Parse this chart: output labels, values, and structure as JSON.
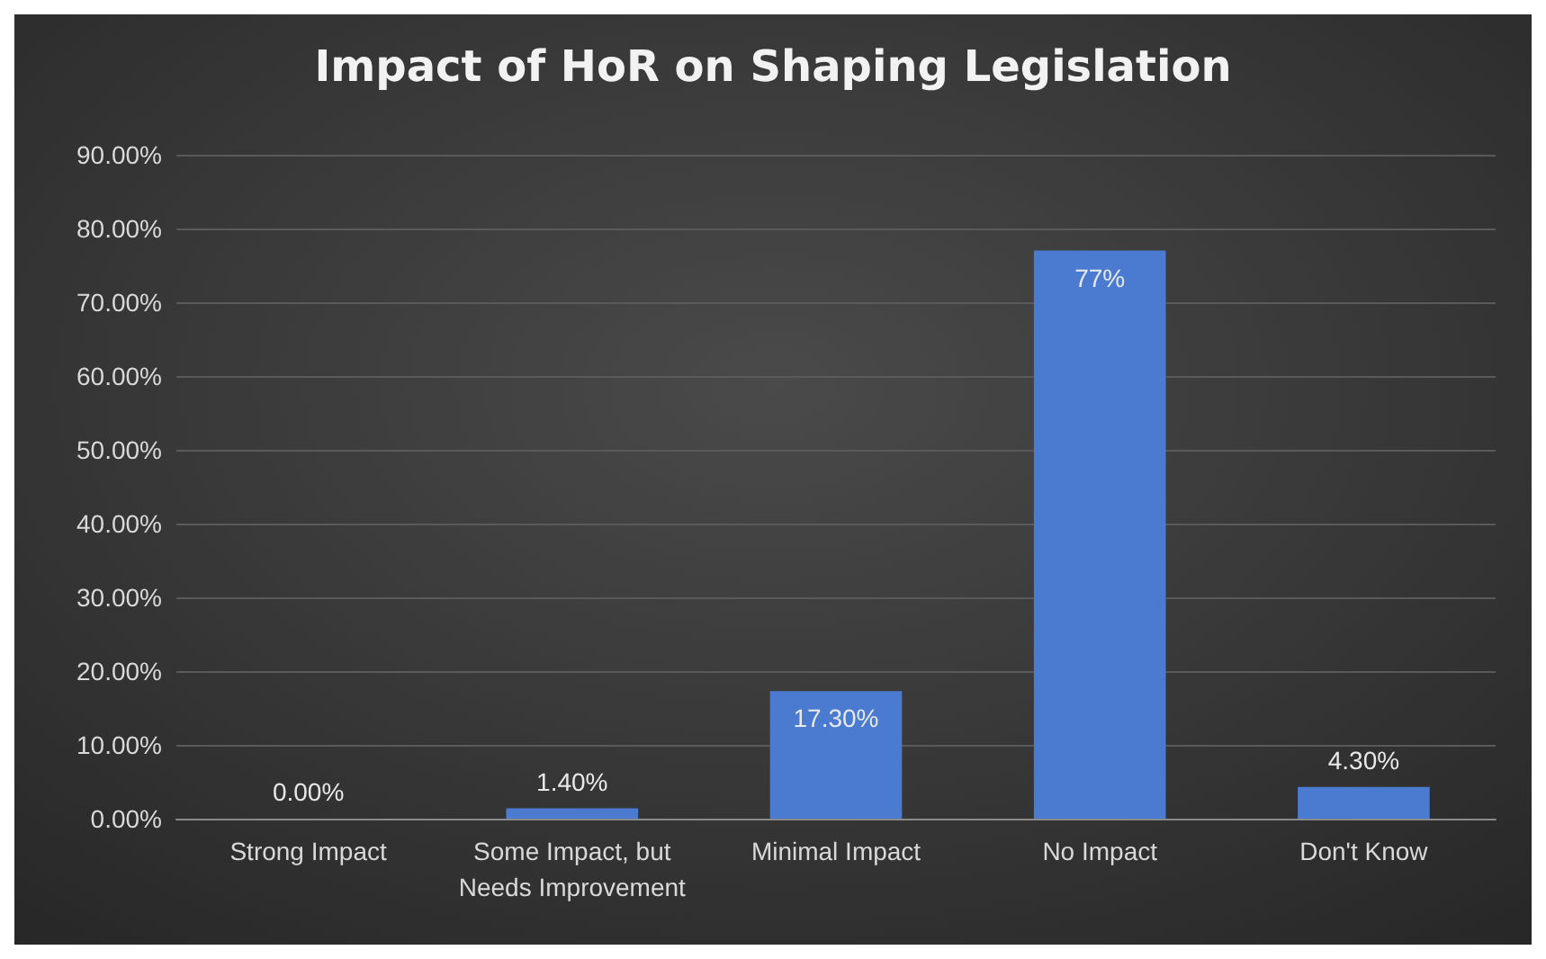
{
  "chart_data": {
    "type": "bar",
    "title": "Impact of HoR on Shaping Legislation",
    "categories": [
      "Strong Impact",
      "Some Impact, but\nNeeds Improvement",
      "Minimal Impact",
      "No Impact",
      "Don't Know"
    ],
    "values": [
      0,
      1.4,
      17.3,
      77,
      4.3
    ],
    "value_labels": [
      "0.00%",
      "1.40%",
      "17.30%",
      "77%",
      "4.30%"
    ],
    "color": "#4a7bd0",
    "ylim": [
      0,
      90
    ],
    "yticks": [
      {
        "value": 0,
        "label": "0.00%"
      },
      {
        "value": 10,
        "label": "10.00%"
      },
      {
        "value": 20,
        "label": "20.00%"
      },
      {
        "value": 30,
        "label": "30.00%"
      },
      {
        "value": 40,
        "label": "40.00%"
      },
      {
        "value": 50,
        "label": "50.00%"
      },
      {
        "value": 60,
        "label": "60.00%"
      },
      {
        "value": 70,
        "label": "70.00%"
      },
      {
        "value": 80,
        "label": "80.00%"
      },
      {
        "value": 90,
        "label": "90.00%"
      }
    ],
    "grid": "y"
  }
}
